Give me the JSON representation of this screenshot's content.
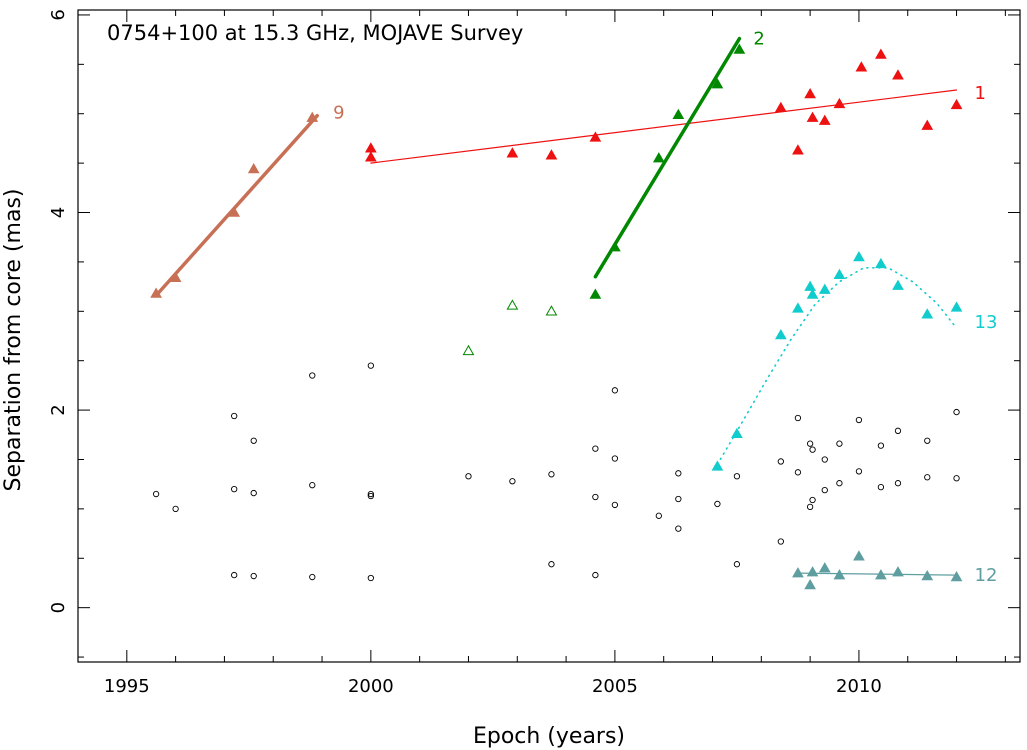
{
  "chart_data": {
    "type": "scatter",
    "title": "0754+100 at 15.3 GHz, MOJAVE Survey",
    "xlabel": "Epoch (years)",
    "ylabel": "Separation from core (mas)",
    "xlim": [
      1994,
      2013.3
    ],
    "ylim": [
      -0.55,
      6.05
    ],
    "xticks": [
      1995,
      2000,
      2005,
      2010
    ],
    "xtick_labels": [
      "1995",
      "2000",
      "2005",
      "2010"
    ],
    "yticks": [
      0,
      2,
      4,
      6
    ],
    "ytick_labels": [
      "0",
      "2",
      "4",
      "6"
    ],
    "grid": false,
    "series": [
      {
        "name": "9",
        "label": "9",
        "color": "#c87055",
        "marker": "triangle-filled",
        "points": [
          [
            1995.6,
            3.18
          ],
          [
            1996.0,
            3.34
          ],
          [
            1997.2,
            4.0
          ],
          [
            1997.6,
            4.44
          ],
          [
            1998.8,
            4.96
          ]
        ],
        "fit": {
          "style": "solid",
          "width": 3.5,
          "points": [
            [
              1995.6,
              3.16
            ],
            [
              1998.9,
              4.98
            ]
          ]
        }
      },
      {
        "name": "1",
        "label": "1",
        "color": "#ee1111",
        "marker": "triangle-filled",
        "points": [
          [
            2000.0,
            4.65
          ],
          [
            2000.0,
            4.56
          ],
          [
            2002.9,
            4.6
          ],
          [
            2003.7,
            4.58
          ],
          [
            2004.6,
            4.76
          ],
          [
            2008.4,
            5.06
          ],
          [
            2008.75,
            4.63
          ],
          [
            2009.0,
            5.2
          ],
          [
            2009.05,
            4.96
          ],
          [
            2009.3,
            4.93
          ],
          [
            2009.6,
            5.1
          ],
          [
            2010.05,
            5.47
          ],
          [
            2010.45,
            5.6
          ],
          [
            2010.8,
            5.39
          ],
          [
            2011.4,
            4.88
          ],
          [
            2012.0,
            5.09
          ]
        ],
        "fit": {
          "style": "solid",
          "width": 1.2,
          "points": [
            [
              2000.0,
              4.5
            ],
            [
              2012.0,
              5.24
            ]
          ]
        }
      },
      {
        "name": "2",
        "label": "2",
        "color": "#008800",
        "marker": "triangle-filled",
        "points": [
          [
            2004.6,
            3.17
          ],
          [
            2005.0,
            3.65
          ],
          [
            2005.9,
            4.55
          ],
          [
            2006.3,
            4.99
          ],
          [
            2007.1,
            5.3
          ],
          [
            2007.55,
            5.65
          ]
        ],
        "fit": {
          "style": "solid",
          "width": 3.5,
          "points": [
            [
              2004.6,
              3.35
            ],
            [
              2007.55,
              5.76
            ]
          ]
        }
      },
      {
        "name": "2 (unfitted)",
        "label": "",
        "color": "#008800",
        "marker": "triangle-open",
        "points": [
          [
            2002.0,
            2.6
          ],
          [
            2002.9,
            3.06
          ],
          [
            2003.7,
            3.0
          ]
        ]
      },
      {
        "name": "13",
        "label": "13",
        "color": "#11cccc",
        "marker": "triangle-filled",
        "points": [
          [
            2007.1,
            1.43
          ],
          [
            2007.5,
            1.76
          ],
          [
            2008.4,
            2.76
          ],
          [
            2008.75,
            3.03
          ],
          [
            2009.0,
            3.25
          ],
          [
            2009.05,
            3.17
          ],
          [
            2009.3,
            3.22
          ],
          [
            2009.6,
            3.37
          ],
          [
            2010.0,
            3.55
          ],
          [
            2010.45,
            3.48
          ],
          [
            2010.8,
            3.26
          ],
          [
            2011.4,
            2.97
          ],
          [
            2012.0,
            3.04
          ]
        ],
        "fit": {
          "style": "dotted",
          "width": 1.6,
          "points": [
            [
              2007.1,
              1.45
            ],
            [
              2007.6,
              1.87
            ],
            [
              2008.1,
              2.3
            ],
            [
              2008.6,
              2.71
            ],
            [
              2009.1,
              3.07
            ],
            [
              2009.6,
              3.3
            ],
            [
              2010.1,
              3.44
            ],
            [
              2010.6,
              3.44
            ],
            [
              2011.1,
              3.3
            ],
            [
              2011.6,
              3.08
            ],
            [
              2012.0,
              2.83
            ]
          ]
        }
      },
      {
        "name": "12",
        "label": "12",
        "color": "#5f9ea0",
        "marker": "triangle-filled",
        "points": [
          [
            2008.75,
            0.35
          ],
          [
            2009.0,
            0.23
          ],
          [
            2009.05,
            0.36
          ],
          [
            2009.3,
            0.4
          ],
          [
            2009.6,
            0.33
          ],
          [
            2010.0,
            0.52
          ],
          [
            2010.45,
            0.33
          ],
          [
            2010.8,
            0.36
          ],
          [
            2011.4,
            0.32
          ],
          [
            2012.0,
            0.31
          ]
        ],
        "fit": {
          "style": "solid",
          "width": 1.2,
          "points": [
            [
              2008.75,
              0.35
            ],
            [
              2012.0,
              0.33
            ]
          ]
        }
      },
      {
        "name": "unidentified",
        "label": "",
        "color": "#000000",
        "marker": "circle-open",
        "points": [
          [
            1995.6,
            1.15
          ],
          [
            1996.0,
            1.0
          ],
          [
            1997.2,
            1.94
          ],
          [
            1997.2,
            1.2
          ],
          [
            1997.2,
            0.33
          ],
          [
            1997.6,
            1.69
          ],
          [
            1997.6,
            1.16
          ],
          [
            1997.6,
            0.32
          ],
          [
            1998.8,
            2.35
          ],
          [
            1998.8,
            1.24
          ],
          [
            1998.8,
            0.31
          ],
          [
            2000.0,
            2.45
          ],
          [
            2000.0,
            1.15
          ],
          [
            2000.0,
            1.13
          ],
          [
            2000.0,
            0.3
          ],
          [
            2002.0,
            1.33
          ],
          [
            2002.9,
            1.28
          ],
          [
            2003.7,
            1.35
          ],
          [
            2003.7,
            0.44
          ],
          [
            2004.6,
            1.61
          ],
          [
            2004.6,
            1.12
          ],
          [
            2004.6,
            0.33
          ],
          [
            2005.0,
            2.2
          ],
          [
            2005.0,
            1.51
          ],
          [
            2005.0,
            1.04
          ],
          [
            2005.9,
            0.93
          ],
          [
            2006.3,
            1.36
          ],
          [
            2006.3,
            1.1
          ],
          [
            2006.3,
            0.8
          ],
          [
            2007.1,
            1.05
          ],
          [
            2007.5,
            1.33
          ],
          [
            2007.5,
            0.44
          ],
          [
            2008.4,
            1.48
          ],
          [
            2008.4,
            0.67
          ],
          [
            2008.75,
            1.92
          ],
          [
            2008.75,
            1.37
          ],
          [
            2009.0,
            1.66
          ],
          [
            2009.05,
            1.6
          ],
          [
            2009.3,
            1.5
          ],
          [
            2009.0,
            1.02
          ],
          [
            2009.05,
            1.09
          ],
          [
            2009.3,
            1.19
          ],
          [
            2009.6,
            1.26
          ],
          [
            2009.6,
            1.66
          ],
          [
            2010.0,
            1.9
          ],
          [
            2010.0,
            1.38
          ],
          [
            2010.45,
            1.64
          ],
          [
            2010.45,
            1.22
          ],
          [
            2010.8,
            1.79
          ],
          [
            2010.8,
            1.26
          ],
          [
            2011.4,
            1.69
          ],
          [
            2011.4,
            1.32
          ],
          [
            2012.0,
            1.98
          ],
          [
            2012.0,
            1.31
          ]
        ]
      }
    ]
  }
}
